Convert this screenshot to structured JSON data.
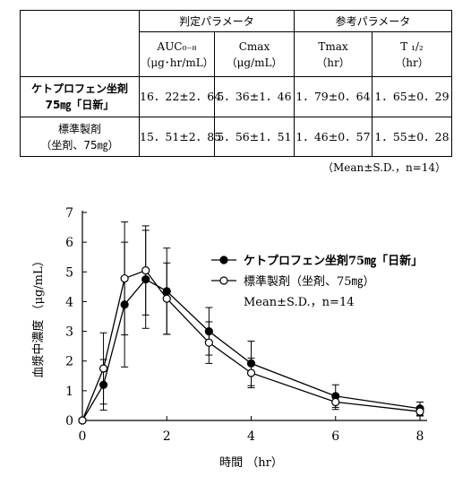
{
  "table": {
    "group_headers": [
      "判定パラメータ",
      "参考パラメータ"
    ],
    "columns": [
      {
        "name": "AUC₀₋₈",
        "unit": "（μg･hr/mL）"
      },
      {
        "name": "Cmax",
        "unit": "（μg/mL）"
      },
      {
        "name": "Tmax",
        "unit": "（hr）"
      },
      {
        "name": "T ₁/₂",
        "unit": "（hr）"
      }
    ],
    "rows": [
      {
        "label_line1": "ケトプロフェン坐剤",
        "label_line2": "75㎎「日新」",
        "values": [
          "16．22±2．64",
          "5．36±1．46",
          "1．79±0．64",
          "1．65±0．29"
        ]
      },
      {
        "label_line1": "標準製剤",
        "label_line2": "（坐剤、75㎎）",
        "values": [
          "15．51±2．85",
          "5．56±1．51",
          "1．46±0．57",
          "1．55±0．28"
        ]
      }
    ],
    "note": "（Mean±S.D.，n=14）"
  },
  "chart_data": {
    "type": "line",
    "xlabel": "時間 （hr）",
    "ylabel": "血漿中濃度 （μg/mL）",
    "xlim": [
      0,
      8
    ],
    "ylim": [
      0,
      7
    ],
    "xticks": [
      0,
      2,
      4,
      6,
      8
    ],
    "yticks": [
      0,
      1,
      2,
      3,
      4,
      5,
      6,
      7
    ],
    "grid": false,
    "legend_position": "top-right",
    "legend_note": "Mean±S.D.，n=14",
    "series": [
      {
        "name": "ケトプロフェン坐剤75㎎「日新」",
        "marker": "filled-circle",
        "x": [
          0,
          0.5,
          1,
          1.5,
          2,
          3,
          4,
          6,
          8
        ],
        "y": [
          0,
          1.2,
          3.9,
          4.75,
          4.35,
          3.0,
          1.92,
          0.82,
          0.4
        ],
        "sd": [
          0,
          0.85,
          2.1,
          1.65,
          1.45,
          0.8,
          0.75,
          0.38,
          0.22
        ]
      },
      {
        "name": "標準製剤（坐剤、75㎎）",
        "marker": "open-circle",
        "x": [
          0,
          0.5,
          1,
          1.5,
          2,
          3,
          4,
          6,
          8
        ],
        "y": [
          0,
          1.75,
          4.78,
          5.05,
          4.1,
          2.62,
          1.6,
          0.62,
          0.3
        ],
        "sd": [
          0,
          1.2,
          1.9,
          1.5,
          1.2,
          0.7,
          0.5,
          0.25,
          0.15
        ]
      }
    ]
  }
}
